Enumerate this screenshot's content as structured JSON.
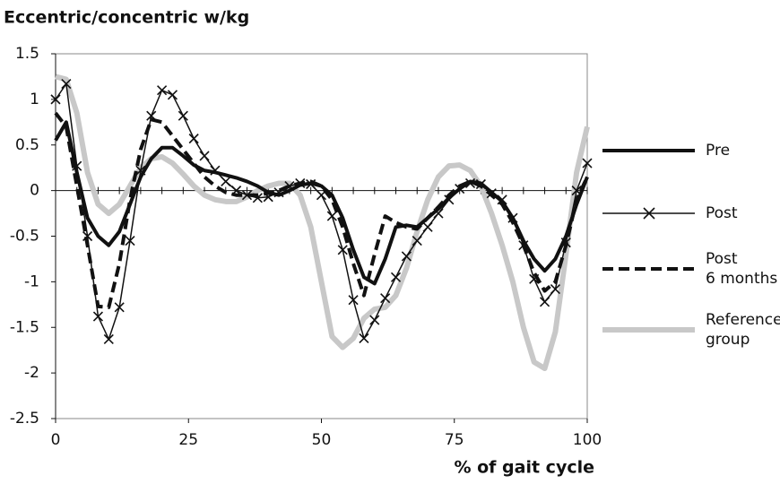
{
  "chart_data": {
    "type": "line",
    "title": "Eccentric/concentric w/kg",
    "xlabel": "% of gait cycle",
    "x": [
      0,
      2,
      4,
      6,
      8,
      10,
      12,
      14,
      16,
      18,
      20,
      22,
      24,
      26,
      28,
      30,
      32,
      34,
      36,
      38,
      40,
      42,
      44,
      46,
      48,
      50,
      52,
      54,
      56,
      58,
      60,
      62,
      64,
      66,
      68,
      70,
      72,
      74,
      76,
      78,
      80,
      82,
      84,
      86,
      88,
      90,
      92,
      94,
      96,
      98,
      100
    ],
    "series": [
      {
        "name": "Pre",
        "color": "#111111",
        "linestyle": "solid",
        "marker": "none",
        "values": [
          0.55,
          0.75,
          0.2,
          -0.3,
          -0.5,
          -0.6,
          -0.45,
          -0.15,
          0.15,
          0.35,
          0.47,
          0.47,
          0.38,
          0.28,
          0.22,
          0.2,
          0.17,
          0.14,
          0.1,
          0.05,
          -0.02,
          -0.05,
          0.0,
          0.06,
          0.08,
          0.05,
          -0.05,
          -0.3,
          -0.65,
          -0.95,
          -1.02,
          -0.75,
          -0.4,
          -0.38,
          -0.4,
          -0.3,
          -0.2,
          -0.08,
          0.02,
          0.1,
          0.08,
          -0.02,
          -0.12,
          -0.3,
          -0.55,
          -0.75,
          -0.88,
          -0.75,
          -0.5,
          -0.15,
          0.15
        ]
      },
      {
        "name": "Post",
        "color": "#111111",
        "linestyle": "solid",
        "marker": "x",
        "values": [
          1.0,
          1.17,
          0.27,
          -0.5,
          -1.38,
          -1.63,
          -1.28,
          -0.55,
          0.22,
          0.82,
          1.1,
          1.05,
          0.82,
          0.57,
          0.38,
          0.22,
          0.1,
          0.0,
          -0.05,
          -0.08,
          -0.07,
          -0.02,
          0.05,
          0.08,
          0.07,
          -0.05,
          -0.28,
          -0.65,
          -1.2,
          -1.62,
          -1.42,
          -1.18,
          -0.95,
          -0.72,
          -0.55,
          -0.4,
          -0.25,
          -0.1,
          0.02,
          0.08,
          0.07,
          -0.03,
          -0.1,
          -0.3,
          -0.6,
          -0.97,
          -1.22,
          -1.08,
          -0.57,
          0.0,
          0.3
        ]
      },
      {
        "name": "Post 6 months",
        "color": "#111111",
        "linestyle": "dashed",
        "marker": "none",
        "values": [
          0.85,
          0.7,
          0.05,
          -0.6,
          -1.27,
          -1.28,
          -0.8,
          -0.1,
          0.45,
          0.78,
          0.75,
          0.6,
          0.45,
          0.3,
          0.15,
          0.05,
          -0.02,
          -0.05,
          -0.05,
          -0.05,
          -0.03,
          0.0,
          0.05,
          0.08,
          0.1,
          0.05,
          -0.1,
          -0.4,
          -0.8,
          -1.15,
          -0.7,
          -0.28,
          -0.35,
          -0.4,
          -0.42,
          -0.3,
          -0.18,
          -0.05,
          0.05,
          0.1,
          0.05,
          -0.05,
          -0.15,
          -0.35,
          -0.6,
          -0.9,
          -1.1,
          -1.0,
          -0.6,
          -0.1,
          0.15
        ]
      },
      {
        "name": "Reference group",
        "color": "#c8c8c8",
        "linestyle": "solid",
        "marker": "none",
        "values": [
          1.25,
          1.22,
          0.85,
          0.2,
          -0.15,
          -0.25,
          -0.15,
          0.05,
          0.25,
          0.35,
          0.37,
          0.3,
          0.18,
          0.05,
          -0.05,
          -0.1,
          -0.12,
          -0.12,
          -0.07,
          0.0,
          0.05,
          0.08,
          0.08,
          -0.05,
          -0.4,
          -1.0,
          -1.6,
          -1.72,
          -1.62,
          -1.4,
          -1.3,
          -1.28,
          -1.15,
          -0.85,
          -0.45,
          -0.1,
          0.15,
          0.27,
          0.28,
          0.22,
          0.05,
          -0.25,
          -0.6,
          -1.0,
          -1.5,
          -1.88,
          -1.95,
          -1.55,
          -0.7,
          0.2,
          0.7
        ]
      }
    ],
    "xlim": [
      0,
      100
    ],
    "xticks": [
      0,
      25,
      50,
      75,
      100
    ],
    "ylim": [
      -2.5,
      1.5
    ],
    "yticks": [
      1.5,
      1,
      0.5,
      0,
      -0.5,
      -1,
      -1.5,
      -2,
      -2.5
    ],
    "grid": false,
    "legend": "right"
  }
}
